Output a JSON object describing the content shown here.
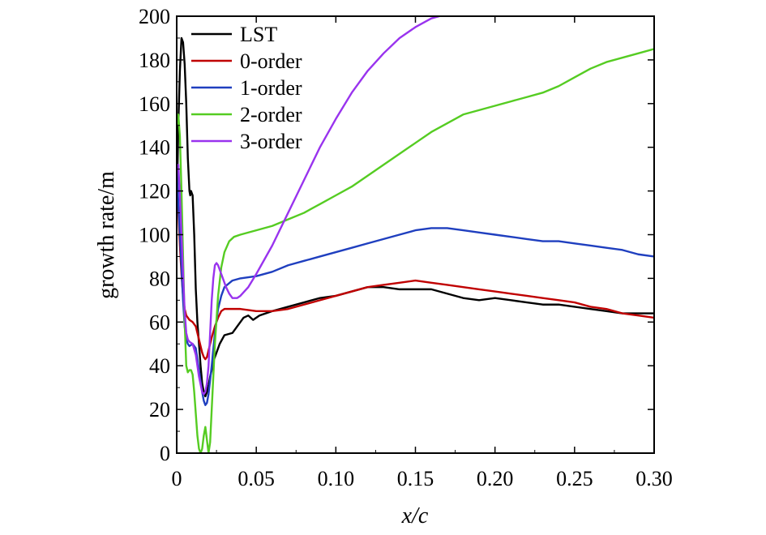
{
  "chart_data": {
    "type": "line",
    "xlabel": "x/c",
    "ylabel": "growth rate/m",
    "xlim": [
      0,
      0.3
    ],
    "ylim": [
      0,
      200
    ],
    "xticks": [
      {
        "value": 0,
        "label": "0"
      },
      {
        "value": 0.05,
        "label": "0.05"
      },
      {
        "value": 0.1,
        "label": "0.10"
      },
      {
        "value": 0.15,
        "label": "0.15"
      },
      {
        "value": 0.2,
        "label": "0.20"
      },
      {
        "value": 0.25,
        "label": "0.25"
      },
      {
        "value": 0.3,
        "label": "0.30"
      }
    ],
    "yticks": [
      {
        "value": 0,
        "label": "0"
      },
      {
        "value": 20,
        "label": "20"
      },
      {
        "value": 40,
        "label": "40"
      },
      {
        "value": 60,
        "label": "60"
      },
      {
        "value": 80,
        "label": "80"
      },
      {
        "value": 100,
        "label": "100"
      },
      {
        "value": 120,
        "label": "120"
      },
      {
        "value": 140,
        "label": "140"
      },
      {
        "value": 160,
        "label": "160"
      },
      {
        "value": 180,
        "label": "180"
      },
      {
        "value": 200,
        "label": "200"
      }
    ],
    "legend_position": "top-left",
    "grid": false,
    "series": [
      {
        "name": "LST",
        "color": "#000000",
        "points": [
          [
            0.0,
            110
          ],
          [
            0.001,
            150
          ],
          [
            0.002,
            175
          ],
          [
            0.003,
            190
          ],
          [
            0.004,
            188
          ],
          [
            0.005,
            178
          ],
          [
            0.006,
            160
          ],
          [
            0.007,
            135
          ],
          [
            0.008,
            120
          ],
          [
            0.0085,
            118
          ],
          [
            0.009,
            120
          ],
          [
            0.01,
            118
          ],
          [
            0.011,
            100
          ],
          [
            0.012,
            75
          ],
          [
            0.013,
            60
          ],
          [
            0.014,
            50
          ],
          [
            0.015,
            40
          ],
          [
            0.016,
            32
          ],
          [
            0.017,
            28
          ],
          [
            0.018,
            26
          ],
          [
            0.019,
            28
          ],
          [
            0.02,
            31
          ],
          [
            0.021,
            35
          ],
          [
            0.022,
            38
          ],
          [
            0.023,
            42
          ],
          [
            0.025,
            46
          ],
          [
            0.027,
            50
          ],
          [
            0.03,
            54
          ],
          [
            0.035,
            55
          ],
          [
            0.038,
            58
          ],
          [
            0.042,
            62
          ],
          [
            0.045,
            63
          ],
          [
            0.048,
            61
          ],
          [
            0.052,
            63
          ],
          [
            0.06,
            65
          ],
          [
            0.07,
            67
          ],
          [
            0.08,
            69
          ],
          [
            0.09,
            71
          ],
          [
            0.1,
            72
          ],
          [
            0.11,
            74
          ],
          [
            0.12,
            76
          ],
          [
            0.13,
            76
          ],
          [
            0.14,
            75
          ],
          [
            0.16,
            75
          ],
          [
            0.18,
            71
          ],
          [
            0.19,
            70
          ],
          [
            0.2,
            71
          ],
          [
            0.21,
            70
          ],
          [
            0.22,
            69
          ],
          [
            0.23,
            68
          ],
          [
            0.24,
            68
          ],
          [
            0.25,
            67
          ],
          [
            0.26,
            66
          ],
          [
            0.27,
            65
          ],
          [
            0.28,
            64
          ],
          [
            0.29,
            64
          ],
          [
            0.3,
            64
          ]
        ]
      },
      {
        "name": "0-order",
        "color": "#c00000",
        "points": [
          [
            0.0,
            130
          ],
          [
            0.001,
            112
          ],
          [
            0.002,
            95
          ],
          [
            0.003,
            82
          ],
          [
            0.004,
            72
          ],
          [
            0.005,
            66
          ],
          [
            0.006,
            63
          ],
          [
            0.008,
            61
          ],
          [
            0.01,
            60
          ],
          [
            0.012,
            58
          ],
          [
            0.014,
            52
          ],
          [
            0.016,
            46
          ],
          [
            0.017,
            44
          ],
          [
            0.018,
            43
          ],
          [
            0.019,
            44
          ],
          [
            0.02,
            47
          ],
          [
            0.022,
            53
          ],
          [
            0.024,
            58
          ],
          [
            0.026,
            62
          ],
          [
            0.028,
            65
          ],
          [
            0.03,
            66
          ],
          [
            0.035,
            66
          ],
          [
            0.04,
            66
          ],
          [
            0.05,
            65
          ],
          [
            0.06,
            65
          ],
          [
            0.07,
            66
          ],
          [
            0.08,
            68
          ],
          [
            0.09,
            70
          ],
          [
            0.1,
            72
          ],
          [
            0.11,
            74
          ],
          [
            0.12,
            76
          ],
          [
            0.13,
            77
          ],
          [
            0.14,
            78
          ],
          [
            0.15,
            79
          ],
          [
            0.16,
            78
          ],
          [
            0.17,
            77
          ],
          [
            0.18,
            76
          ],
          [
            0.19,
            75
          ],
          [
            0.2,
            74
          ],
          [
            0.21,
            73
          ],
          [
            0.22,
            72
          ],
          [
            0.23,
            71
          ],
          [
            0.24,
            70
          ],
          [
            0.25,
            69
          ],
          [
            0.26,
            67
          ],
          [
            0.27,
            66
          ],
          [
            0.28,
            64
          ],
          [
            0.29,
            63
          ],
          [
            0.3,
            62
          ]
        ]
      },
      {
        "name": "1-order",
        "color": "#1f3fbf",
        "points": [
          [
            0.0,
            130
          ],
          [
            0.001,
            115
          ],
          [
            0.002,
            100
          ],
          [
            0.003,
            85
          ],
          [
            0.004,
            70
          ],
          [
            0.005,
            58
          ],
          [
            0.006,
            52
          ],
          [
            0.007,
            50
          ],
          [
            0.008,
            49
          ],
          [
            0.01,
            50
          ],
          [
            0.012,
            48
          ],
          [
            0.014,
            38
          ],
          [
            0.016,
            28
          ],
          [
            0.017,
            24
          ],
          [
            0.018,
            22
          ],
          [
            0.019,
            23
          ],
          [
            0.02,
            27
          ],
          [
            0.022,
            40
          ],
          [
            0.024,
            55
          ],
          [
            0.026,
            66
          ],
          [
            0.028,
            72
          ],
          [
            0.03,
            76
          ],
          [
            0.035,
            79
          ],
          [
            0.04,
            80
          ],
          [
            0.05,
            81
          ],
          [
            0.06,
            83
          ],
          [
            0.07,
            86
          ],
          [
            0.08,
            88
          ],
          [
            0.09,
            90
          ],
          [
            0.1,
            92
          ],
          [
            0.11,
            94
          ],
          [
            0.12,
            96
          ],
          [
            0.13,
            98
          ],
          [
            0.14,
            100
          ],
          [
            0.15,
            102
          ],
          [
            0.16,
            103
          ],
          [
            0.17,
            103
          ],
          [
            0.18,
            102
          ],
          [
            0.19,
            101
          ],
          [
            0.2,
            100
          ],
          [
            0.21,
            99
          ],
          [
            0.22,
            98
          ],
          [
            0.23,
            97
          ],
          [
            0.24,
            97
          ],
          [
            0.25,
            96
          ],
          [
            0.26,
            95
          ],
          [
            0.27,
            94
          ],
          [
            0.28,
            93
          ],
          [
            0.29,
            91
          ],
          [
            0.3,
            90
          ]
        ]
      },
      {
        "name": "2-order",
        "color": "#55cc22",
        "points": [
          [
            0.0,
            150
          ],
          [
            0.001,
            155
          ],
          [
            0.002,
            145
          ],
          [
            0.003,
            120
          ],
          [
            0.004,
            90
          ],
          [
            0.005,
            60
          ],
          [
            0.006,
            40
          ],
          [
            0.007,
            37
          ],
          [
            0.008,
            38
          ],
          [
            0.009,
            38
          ],
          [
            0.01,
            36
          ],
          [
            0.011,
            28
          ],
          [
            0.012,
            18
          ],
          [
            0.013,
            8
          ],
          [
            0.014,
            2
          ],
          [
            0.015,
            0
          ],
          [
            0.016,
            2
          ],
          [
            0.017,
            8
          ],
          [
            0.018,
            12
          ],
          [
            0.019,
            6
          ],
          [
            0.02,
            0
          ],
          [
            0.021,
            5
          ],
          [
            0.022,
            20
          ],
          [
            0.024,
            50
          ],
          [
            0.026,
            72
          ],
          [
            0.028,
            85
          ],
          [
            0.03,
            92
          ],
          [
            0.033,
            97
          ],
          [
            0.036,
            99
          ],
          [
            0.04,
            100
          ],
          [
            0.05,
            102
          ],
          [
            0.06,
            104
          ],
          [
            0.07,
            107
          ],
          [
            0.08,
            110
          ],
          [
            0.09,
            114
          ],
          [
            0.1,
            118
          ],
          [
            0.11,
            122
          ],
          [
            0.12,
            127
          ],
          [
            0.13,
            132
          ],
          [
            0.14,
            137
          ],
          [
            0.15,
            142
          ],
          [
            0.16,
            147
          ],
          [
            0.17,
            151
          ],
          [
            0.18,
            155
          ],
          [
            0.19,
            157
          ],
          [
            0.2,
            159
          ],
          [
            0.21,
            161
          ],
          [
            0.22,
            163
          ],
          [
            0.23,
            165
          ],
          [
            0.24,
            168
          ],
          [
            0.25,
            172
          ],
          [
            0.26,
            176
          ],
          [
            0.27,
            179
          ],
          [
            0.28,
            181
          ],
          [
            0.29,
            183
          ],
          [
            0.3,
            185
          ]
        ]
      },
      {
        "name": "3-order",
        "color": "#9933ee",
        "points": [
          [
            0.0,
            130
          ],
          [
            0.001,
            132
          ],
          [
            0.002,
            118
          ],
          [
            0.003,
            100
          ],
          [
            0.004,
            82
          ],
          [
            0.005,
            65
          ],
          [
            0.006,
            55
          ],
          [
            0.007,
            52
          ],
          [
            0.008,
            51
          ],
          [
            0.01,
            50
          ],
          [
            0.012,
            45
          ],
          [
            0.014,
            35
          ],
          [
            0.016,
            28
          ],
          [
            0.017,
            27
          ],
          [
            0.018,
            28
          ],
          [
            0.019,
            32
          ],
          [
            0.02,
            40
          ],
          [
            0.021,
            55
          ],
          [
            0.022,
            70
          ],
          [
            0.023,
            80
          ],
          [
            0.024,
            86
          ],
          [
            0.025,
            87
          ],
          [
            0.026,
            86
          ],
          [
            0.027,
            84
          ],
          [
            0.029,
            80
          ],
          [
            0.031,
            76
          ],
          [
            0.033,
            73
          ],
          [
            0.035,
            71
          ],
          [
            0.038,
            71
          ],
          [
            0.04,
            72
          ],
          [
            0.045,
            76
          ],
          [
            0.05,
            82
          ],
          [
            0.06,
            95
          ],
          [
            0.07,
            110
          ],
          [
            0.08,
            125
          ],
          [
            0.09,
            140
          ],
          [
            0.1,
            153
          ],
          [
            0.11,
            165
          ],
          [
            0.12,
            175
          ],
          [
            0.13,
            183
          ],
          [
            0.14,
            190
          ],
          [
            0.15,
            195
          ],
          [
            0.16,
            199
          ],
          [
            0.165,
            200
          ]
        ]
      }
    ]
  }
}
